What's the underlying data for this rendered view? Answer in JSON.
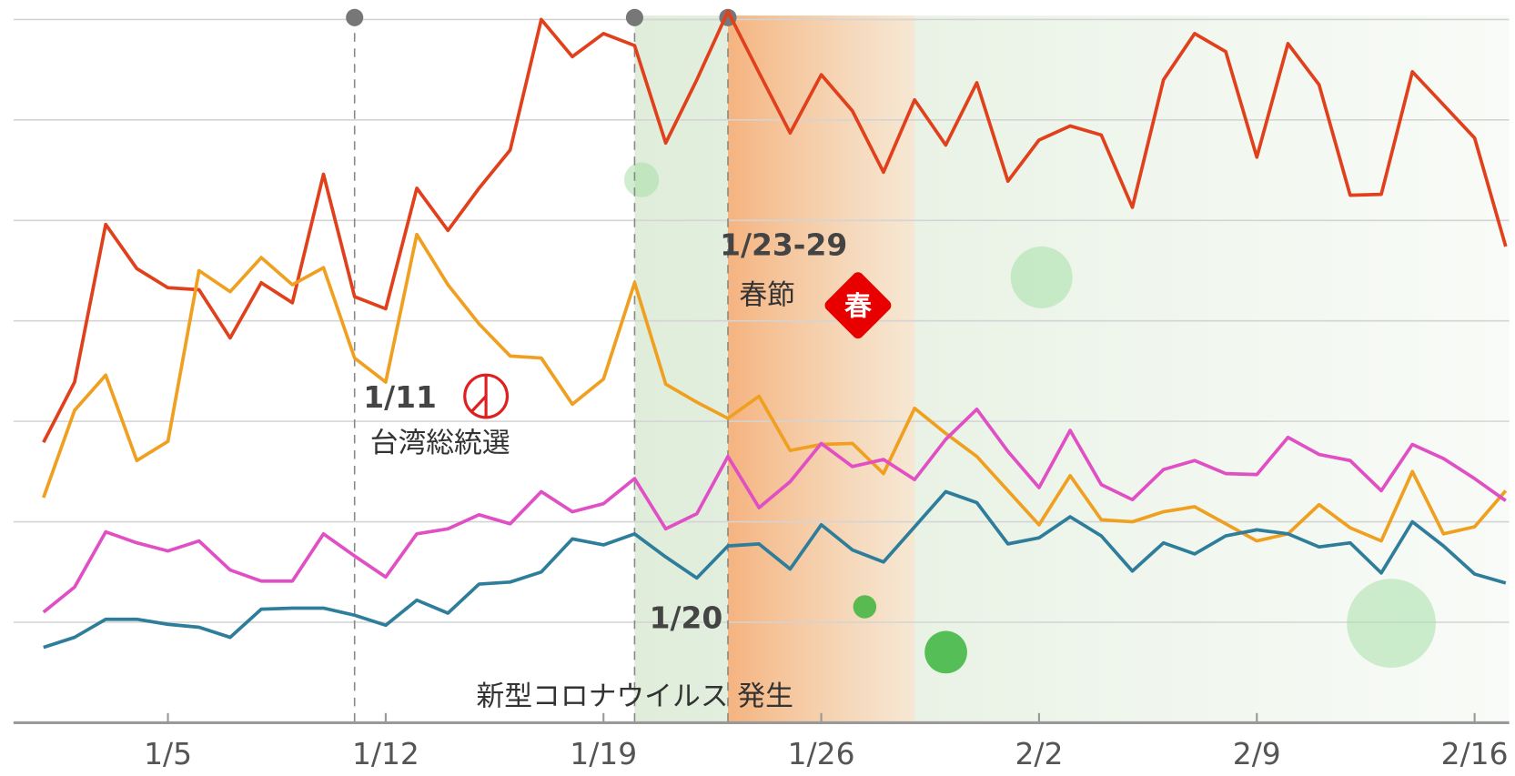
{
  "chart_data": {
    "type": "line",
    "x": [
      1,
      2,
      3,
      4,
      5,
      6,
      7,
      8,
      9,
      10,
      11,
      12,
      13,
      14,
      15,
      16,
      17,
      18,
      19,
      20,
      21,
      22,
      23,
      24,
      25,
      26,
      27,
      28,
      29,
      30,
      31,
      32,
      33,
      34,
      35,
      36,
      37,
      38,
      39,
      40,
      41,
      42,
      43,
      44,
      45,
      46,
      47,
      48
    ],
    "xlim": [
      0,
      49
    ],
    "xticks": [
      {
        "value": 5,
        "label": "1/5"
      },
      {
        "value": 12,
        "label": "1/12"
      },
      {
        "value": 19,
        "label": "1/19"
      },
      {
        "value": 26,
        "label": "1/26"
      },
      {
        "value": 33,
        "label": "2/2"
      },
      {
        "value": 40,
        "label": "2/9"
      },
      {
        "value": 47,
        "label": "2/16"
      }
    ],
    "ylim": [
      0,
      72
    ],
    "grid_values": [
      10,
      20,
      30,
      40,
      50,
      60,
      70
    ],
    "grid": true,
    "series": [
      {
        "color": "#e0401c",
        "values": [
          27.9,
          33.9,
          49.6,
          45.2,
          43.3,
          43.1,
          38.3,
          43.8,
          41.8,
          54.6,
          42.4,
          41.2,
          53.2,
          49.0,
          53.2,
          57.0,
          70.0,
          66.3,
          68.6,
          67.4,
          57.7,
          64.0,
          70.8,
          64.7,
          58.7,
          64.5,
          60.9,
          54.8,
          62.0,
          57.5,
          63.7,
          53.9,
          58.0,
          59.4,
          58.5,
          51.3,
          64.0,
          68.6,
          66.8,
          56.3,
          67.6,
          63.5,
          52.5,
          52.6,
          64.8,
          61.5,
          58.2,
          47.4
        ]
      },
      {
        "color": "#f0a020",
        "values": [
          22.4,
          31.1,
          34.6,
          26.1,
          28.0,
          45.0,
          42.9,
          46.3,
          43.6,
          45.3,
          36.3,
          33.9,
          48.6,
          43.6,
          39.7,
          36.5,
          36.3,
          31.7,
          34.2,
          43.8,
          33.7,
          31.9,
          30.3,
          32.5,
          27.1,
          27.7,
          27.8,
          24.8,
          31.3,
          28.8,
          26.5,
          23.1,
          19.7,
          24.6,
          20.2,
          20.0,
          21.0,
          21.5,
          19.8,
          18.1,
          18.8,
          21.7,
          19.4,
          18.1,
          25.0,
          18.8,
          19.5,
          23.1
        ]
      },
      {
        "color": "#e050c4",
        "values": [
          11.0,
          13.5,
          19.0,
          17.9,
          17.1,
          18.1,
          15.2,
          14.1,
          14.1,
          18.8,
          16.6,
          14.5,
          18.8,
          19.3,
          20.7,
          19.8,
          23.0,
          21.0,
          21.8,
          24.3,
          19.3,
          20.8,
          26.5,
          21.4,
          24.0,
          27.8,
          25.5,
          26.2,
          24.2,
          28.2,
          31.2,
          27.0,
          23.4,
          29.1,
          23.7,
          22.2,
          25.2,
          26.1,
          24.8,
          24.7,
          28.4,
          26.7,
          26.1,
          23.1,
          27.7,
          26.3,
          24.3,
          22.1
        ]
      },
      {
        "color": "#2e7d9a",
        "values": [
          7.5,
          8.5,
          10.3,
          10.3,
          9.8,
          9.5,
          8.5,
          11.3,
          11.4,
          11.4,
          10.7,
          9.7,
          12.2,
          10.9,
          13.8,
          14.0,
          15.0,
          18.3,
          17.7,
          18.8,
          16.5,
          14.4,
          17.6,
          17.8,
          15.3,
          19.7,
          17.2,
          16.0,
          19.5,
          23.0,
          21.9,
          17.8,
          18.4,
          20.5,
          18.6,
          15.1,
          17.9,
          16.8,
          18.6,
          19.2,
          18.8,
          17.5,
          17.9,
          14.9,
          20.0,
          17.6,
          14.8,
          13.9
        ]
      }
    ],
    "annotations": [
      {
        "x": 11,
        "date": "1/11",
        "label": "台湾総統選"
      },
      {
        "x": 20,
        "date": "1/20",
        "label": "新型コロナウイルス 発生"
      },
      {
        "x": 23,
        "end": 29,
        "date": "1/23-29",
        "label": "春節",
        "badge": "春"
      }
    ]
  }
}
